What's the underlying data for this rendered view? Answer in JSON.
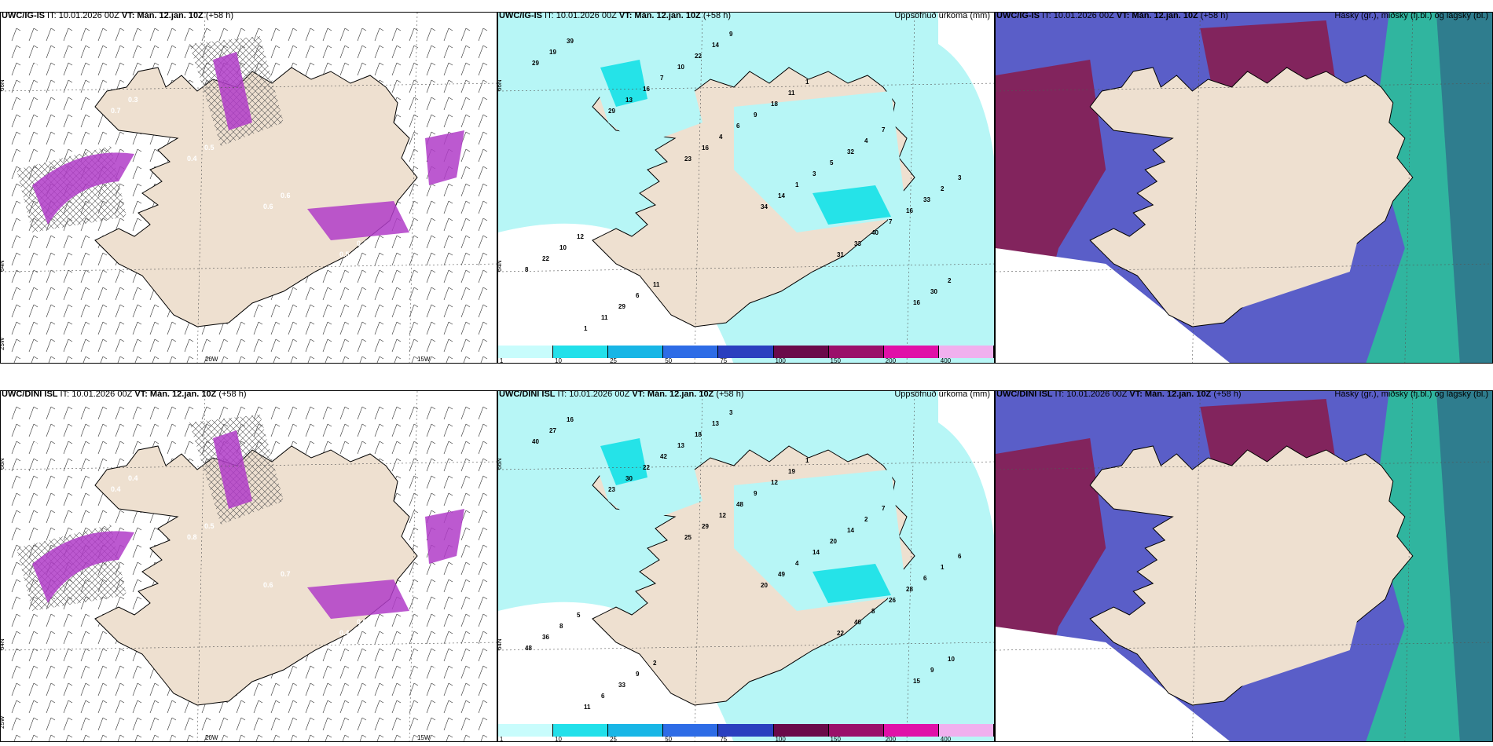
{
  "colors": {
    "land": "#eee0d0",
    "sea": "#ffffff",
    "snow": "#b03cc8",
    "precip_light": "#b7f6f6",
    "precip_mid": "#25e3e8",
    "cloud_high": "#8a1a4a",
    "cloud_mid": "#5a5ec8",
    "cloud_low": "#2bbf9a"
  },
  "panels": [
    {
      "model": "UWC/IG-IS",
      "it_label": "IT:",
      "it_value": "10.01.2026 00Z",
      "vt_label": "VT:",
      "vt_value": "Mán. 12.jan. 10Z",
      "lead": "(+58 h)",
      "right_title": "",
      "lon_labels": [
        "20W",
        "15W"
      ],
      "lat_labels": [
        "66N",
        "64N",
        "25W"
      ],
      "snow_labels": [
        "0.3",
        "0.7",
        "0.4",
        "0.6",
        "0.5",
        "0.8",
        "0.4",
        "0.3",
        "0.5",
        "0.6",
        "0.4"
      ]
    },
    {
      "model": "UWC/IG-IS",
      "it_label": "IT:",
      "it_value": "10.01.2026 00Z",
      "vt_label": "VT:",
      "vt_value": "Mán. 12.jan. 10Z",
      "lead": "(+58 h)",
      "right_title": "Uppsöfnuð úrkoma (mm)",
      "lat_labels": [
        "66N",
        "64N"
      ],
      "precip_values": [
        "29",
        "29",
        "23",
        "34",
        "31",
        "16",
        "19",
        "13",
        "16",
        "14",
        "33",
        "30",
        "39",
        "16",
        "4",
        "1",
        "40",
        "2",
        "1",
        "7",
        "6",
        "3",
        "7",
        "8",
        "11",
        "10",
        "9",
        "5",
        "16",
        "22",
        "29",
        "22",
        "18",
        "32",
        "33",
        "10",
        "6",
        "14",
        "11",
        "4",
        "2",
        "12",
        "11",
        "9",
        "1",
        "7",
        "3"
      ]
    },
    {
      "model": "UWC/IG-IS",
      "it_label": "IT:",
      "it_value": "10.01.2026 00Z",
      "vt_label": "VT:",
      "vt_value": "Mán. 12.jan. 10Z",
      "lead": "(+58 h)",
      "right_title": "Háský (gr.), miðský (fj.bl.) og lágský (bl.)"
    },
    {
      "model": "UWC/DINI ISL",
      "it_label": "IT:",
      "it_value": "10.01.2026 00Z",
      "vt_label": "VT:",
      "vt_value": "Mán. 12.jan. 10Z",
      "lead": "(+58 h)",
      "right_title": "",
      "lon_labels": [
        "20W",
        "15W"
      ],
      "lat_labels": [
        "66N",
        "64N",
        "25W"
      ],
      "snow_labels": [
        "0.8",
        "0.4",
        "0.8",
        "0.6",
        "0.4",
        "0.6",
        "0.2",
        "0.4",
        "0.5",
        "0.7",
        "0.6",
        "0.5"
      ]
    },
    {
      "model": "UWC/DINI ISL",
      "it_label": "IT:",
      "it_value": "10.01.2026 00Z",
      "vt_label": "VT:",
      "vt_value": "Mán. 12.jan. 10Z",
      "lead": "(+58 h)",
      "right_title": "Uppsöfnuð úrkoma (mm)",
      "lat_labels": [
        "66N",
        "64N"
      ],
      "precip_values": [
        "40",
        "23",
        "25",
        "20",
        "22",
        "15",
        "27",
        "30",
        "29",
        "49",
        "40",
        "9",
        "16",
        "22",
        "12",
        "4",
        "8",
        "10",
        "11",
        "42",
        "48",
        "14",
        "26",
        "48",
        "6",
        "13",
        "9",
        "20",
        "28",
        "36",
        "33",
        "18",
        "12",
        "14",
        "6",
        "8",
        "9",
        "13",
        "19",
        "2",
        "1",
        "5",
        "2",
        "3",
        "1",
        "7",
        "6"
      ]
    },
    {
      "model": "UWC/DINI ISL",
      "it_label": "IT:",
      "it_value": "10.01.2026 00Z",
      "vt_label": "VT:",
      "vt_value": "Mán. 12.jan. 10Z",
      "lead": "(+58 h)",
      "right_title": "Háský (gr.), miðský (fj.bl.) og lágský (bl.)"
    }
  ],
  "colorbar": {
    "ticks": [
      "1",
      "10",
      "25",
      "50",
      "75",
      "100",
      "150",
      "200",
      "400"
    ],
    "colors": [
      "#c8fcfc",
      "#22e0ea",
      "#18b6e6",
      "#2e6ce6",
      "#2a3fbf",
      "#6a0a4a",
      "#9a0f6a",
      "#e011a8",
      "#f0b0ee"
    ]
  }
}
